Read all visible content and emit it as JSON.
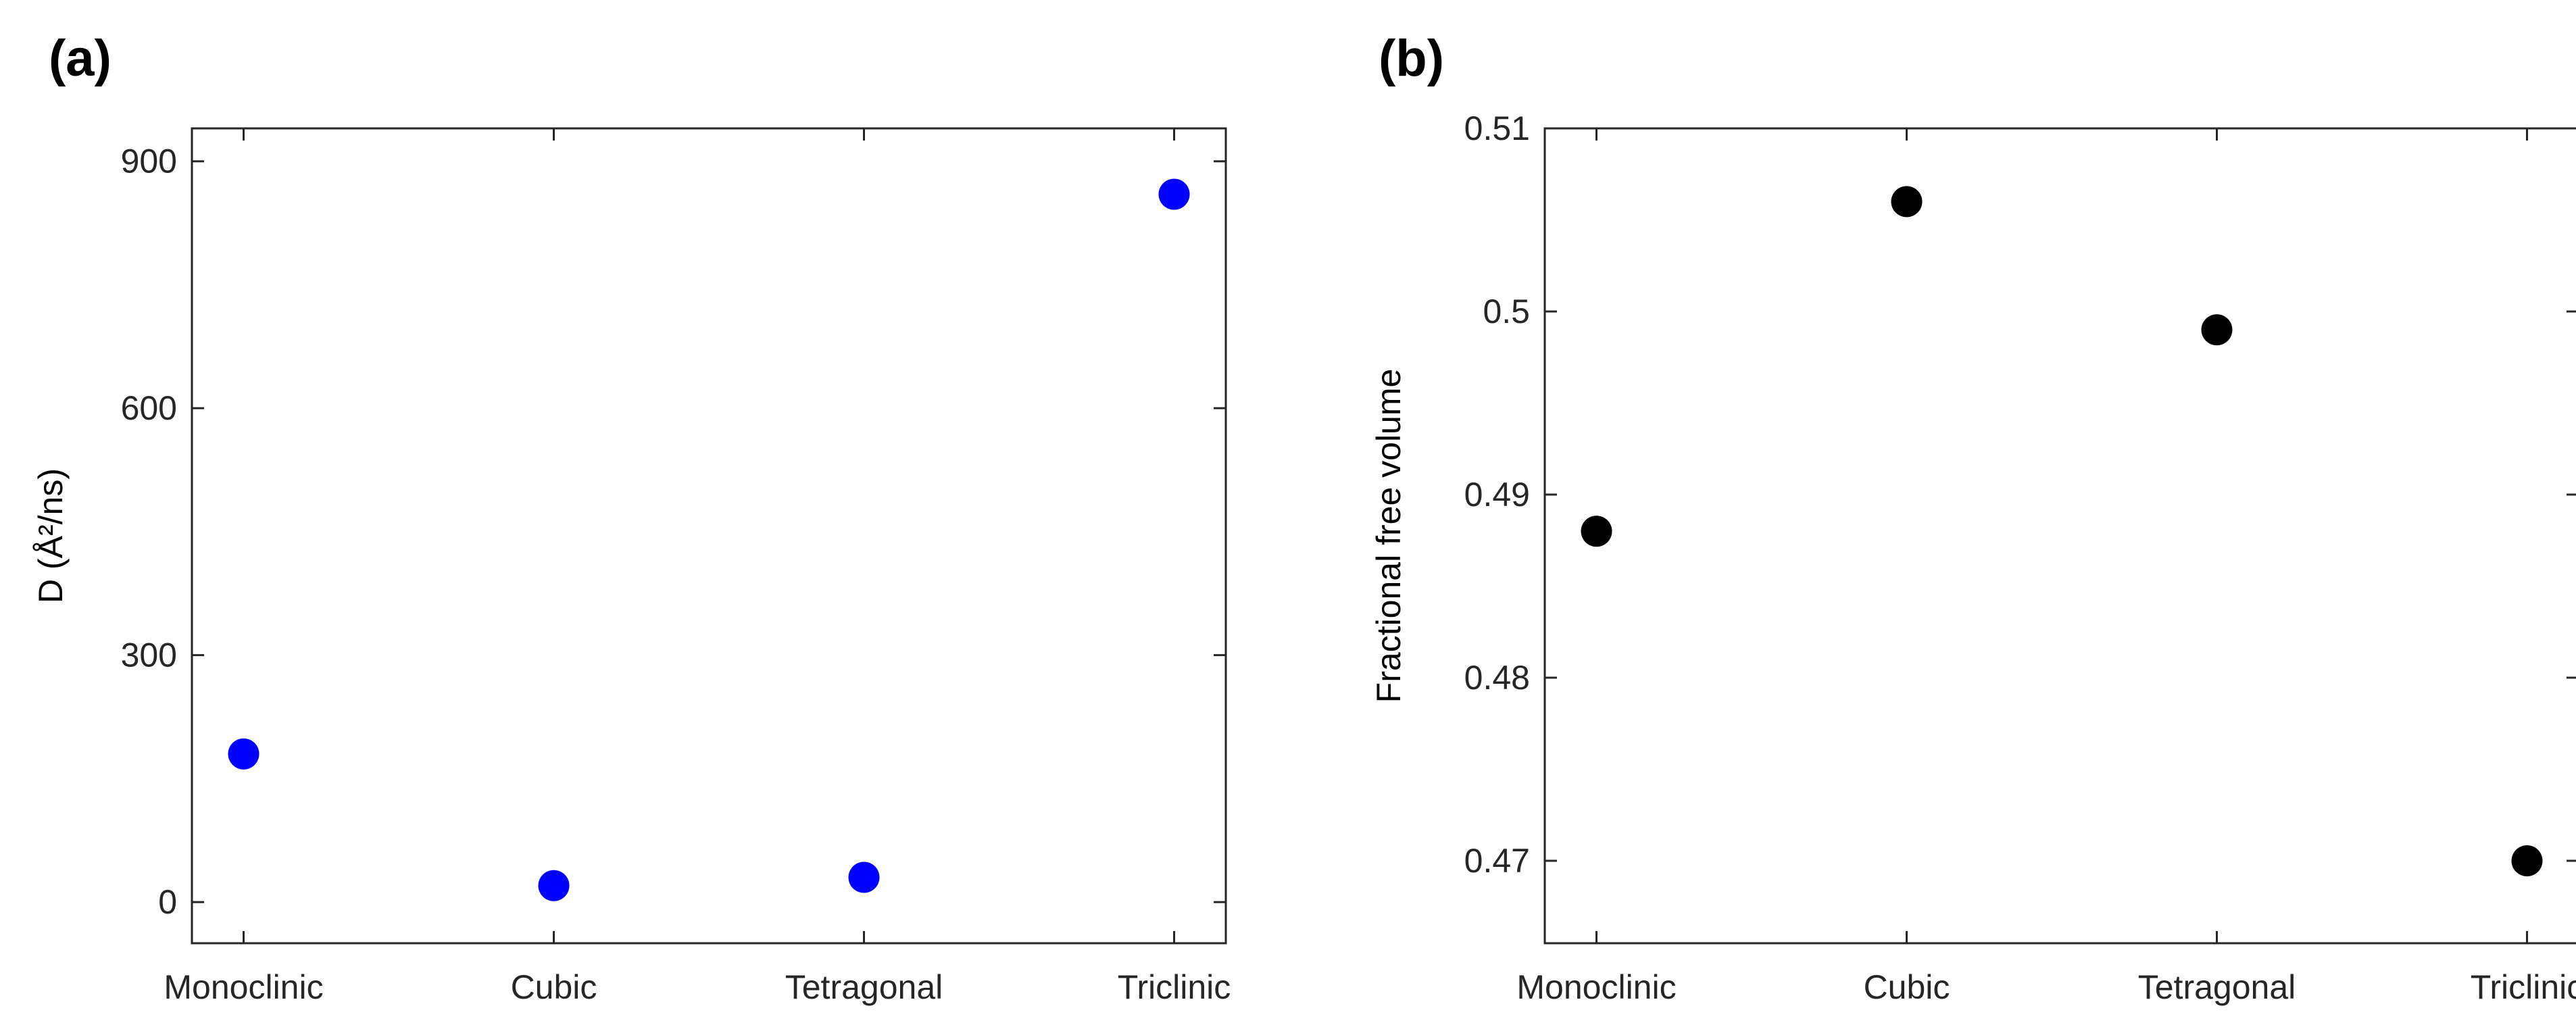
{
  "chart_data": [
    {
      "panel": "(a)",
      "type": "scatter",
      "categories": [
        "Monoclinic",
        "Cubic",
        "Tetragonal",
        "Triclinic"
      ],
      "values": [
        180,
        20,
        30,
        860
      ],
      "ylabel": "D (Å²/ns)",
      "xlabel": "",
      "ylim": [
        -50,
        940
      ],
      "yticks": [
        0,
        300,
        600,
        900
      ],
      "ytick_labels": [
        "0",
        "300",
        "600",
        "900"
      ],
      "marker_color": "#0000ff",
      "grid": false
    },
    {
      "panel": "(b)",
      "type": "scatter",
      "categories": [
        "Monoclinic",
        "Cubic",
        "Tetragonal",
        "Triclinic"
      ],
      "values": [
        0.488,
        0.506,
        0.499,
        0.47
      ],
      "ylabel": "Fractional free volume",
      "xlabel": "",
      "ylim": [
        0.4655,
        0.51
      ],
      "yticks": [
        0.47,
        0.48,
        0.49,
        0.5,
        0.51
      ],
      "ytick_labels": [
        "0.47",
        "0.48",
        "0.49",
        "0.5",
        "0.51"
      ],
      "marker_color": "#000000",
      "grid": false
    }
  ]
}
